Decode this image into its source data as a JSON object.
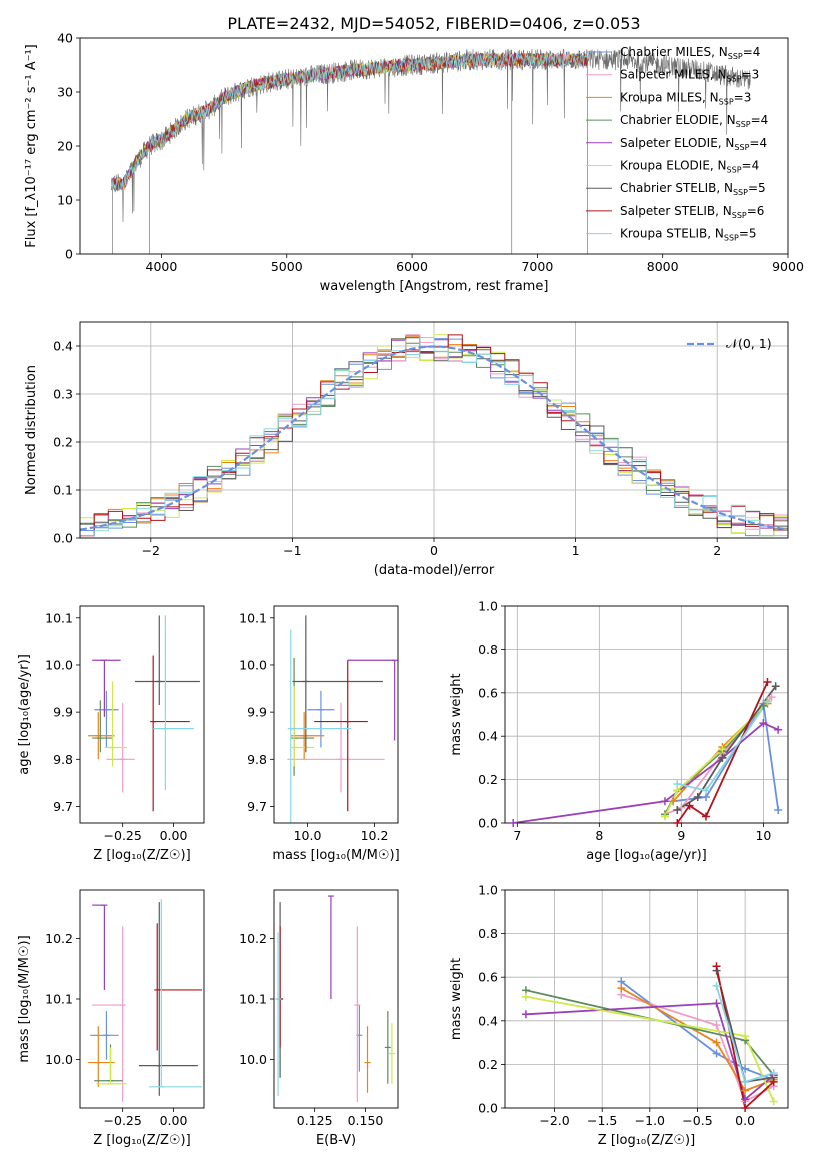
{
  "title": "PLATE=2432, MJD=54052, FIBERID=0406, z=0.053",
  "colors": {
    "Chabrier MILES": "#6a90e0",
    "Salpeter MILES": "#f29ac8",
    "Kroupa MILES": "#e8841a",
    "Chabrier ELODIE": "#5e8c5e",
    "Salpeter ELODIE": "#9b3fb8",
    "Kroupa ELODIE": "#cde94a",
    "Chabrier STELIB": "#5a5a5a",
    "Salpeter STELIB": "#b0141c",
    "Kroupa STELIB": "#85d8e3"
  },
  "chart_data": [
    {
      "id": "spectrum",
      "type": "line",
      "xlabel": "wavelength [Angstrom, rest frame]",
      "ylabel": "Flux [f_λ10⁻¹⁷ erg cm⁻² s⁻¹ A⁻¹]",
      "xlim": [
        3350,
        9000
      ],
      "ylim": [
        0,
        40
      ],
      "xticks": [
        4000,
        5000,
        6000,
        7000,
        8000,
        9000
      ],
      "yticks": [
        0,
        10,
        20,
        30,
        40
      ],
      "legend_position": "top-right",
      "legend": [
        {
          "name": "Chabrier MILES",
          "n_ssp": 4
        },
        {
          "name": "Salpeter MILES",
          "n_ssp": 3
        },
        {
          "name": "Kroupa MILES",
          "n_ssp": 3
        },
        {
          "name": "Chabrier ELODIE",
          "n_ssp": 4
        },
        {
          "name": "Salpeter ELODIE",
          "n_ssp": 4
        },
        {
          "name": "Kroupa ELODIE",
          "n_ssp": 4
        },
        {
          "name": "Chabrier STELIB",
          "n_ssp": 5
        },
        {
          "name": "Salpeter STELIB",
          "n_ssp": 6
        },
        {
          "name": "Kroupa STELIB",
          "n_ssp": 5
        }
      ],
      "continuum": [
        [
          3600,
          13
        ],
        [
          3700,
          13
        ],
        [
          3800,
          17
        ],
        [
          3900,
          20
        ],
        [
          4000,
          21
        ],
        [
          4100,
          23
        ],
        [
          4200,
          25
        ],
        [
          4300,
          26
        ],
        [
          4400,
          27
        ],
        [
          4500,
          29
        ],
        [
          4700,
          31
        ],
        [
          4900,
          32
        ],
        [
          5200,
          33
        ],
        [
          5500,
          34
        ],
        [
          6000,
          35
        ],
        [
          6500,
          36
        ],
        [
          6800,
          36
        ],
        [
          7000,
          36
        ],
        [
          7400,
          36
        ],
        [
          7700,
          36
        ],
        [
          8000,
          35
        ],
        [
          8300,
          34
        ],
        [
          8500,
          33
        ],
        [
          8700,
          32
        ]
      ],
      "spectrum_range": [
        3600,
        8700
      ],
      "models_range": [
        3600,
        7400
      ]
    },
    {
      "id": "residuals",
      "type": "line",
      "xlabel": "(data-model)/error",
      "ylabel": "Normed distribution",
      "xlim": [
        -2.5,
        2.5
      ],
      "ylim": [
        0,
        0.45
      ],
      "xticks": [
        -2,
        -1,
        0,
        1,
        2
      ],
      "yticks": [
        0.0,
        0.1,
        0.2,
        0.3,
        0.4
      ],
      "grid": true,
      "legend_position": "top-right",
      "reference_curve": "𝒩(0, 1)",
      "bin_width": 0.1
    },
    {
      "id": "z-age",
      "type": "scatter",
      "xlabel": "Z [log₁₀(Z/Z☉)]",
      "ylabel": "age  [log₁₀(age/yr)]",
      "xlim": [
        -0.46,
        0.15
      ],
      "ylim": [
        9.665,
        10.125
      ],
      "xticks": [
        -0.25,
        0.0
      ],
      "yticks": [
        9.7,
        9.8,
        9.9,
        10.0,
        10.1
      ],
      "points": [
        {
          "series": "Chabrier MILES",
          "x": -0.33,
          "xe": [
            0.06,
            0.06
          ],
          "y": 9.905,
          "ye": [
            0.08,
            0.04
          ]
        },
        {
          "series": "Salpeter MILES",
          "x": -0.25,
          "xe": [
            0.08,
            0.06
          ],
          "y": 9.8,
          "ye": [
            0.07,
            0.12
          ]
        },
        {
          "series": "Kroupa MILES",
          "x": -0.37,
          "xe": [
            0.05,
            0.08
          ],
          "y": 9.85,
          "ye": [
            0.05,
            0.05
          ]
        },
        {
          "series": "Chabrier ELODIE",
          "x": -0.36,
          "xe": [
            0.04,
            0.06
          ],
          "y": 9.845,
          "ye": [
            0.03,
            0.08
          ]
        },
        {
          "series": "Salpeter ELODIE",
          "x": -0.34,
          "xe": [
            0.06,
            0.08
          ],
          "y": 10.01,
          "ye": [
            0.12,
            0.0
          ]
        },
        {
          "series": "Kroupa ELODIE",
          "x": -0.3,
          "xe": [
            0.04,
            0.07
          ],
          "y": 9.825,
          "ye": [
            0.04,
            0.14
          ]
        },
        {
          "series": "Chabrier STELIB",
          "x": -0.07,
          "xe": [
            0.12,
            0.2
          ],
          "y": 9.965,
          "ye": [
            0.05,
            0.14
          ]
        },
        {
          "series": "Salpeter STELIB",
          "x": -0.1,
          "xe": [
            0.0,
            0.18
          ],
          "y": 9.88,
          "ye": [
            0.19,
            0.14
          ]
        },
        {
          "series": "Kroupa STELIB",
          "x": -0.04,
          "xe": [
            0.06,
            0.14
          ],
          "y": 9.865,
          "ye": [
            0.13,
            0.24
          ]
        }
      ]
    },
    {
      "id": "mass-age",
      "type": "scatter",
      "xlabel": "mass [log₁₀(M/M☉)]",
      "ylabel": "",
      "xlim": [
        9.9,
        10.27
      ],
      "ylim": [
        9.665,
        10.125
      ],
      "xticks": [
        10.0,
        10.2
      ],
      "yticks": [
        9.7,
        9.8,
        9.9,
        10.0,
        10.1
      ],
      "points": [
        {
          "series": "Chabrier MILES",
          "x": 10.04,
          "xe": [
            0.04,
            0.04
          ],
          "y": 9.905,
          "ye": [
            0.08,
            0.04
          ]
        },
        {
          "series": "Salpeter MILES",
          "x": 10.1,
          "xe": [
            0.16,
            0.13
          ],
          "y": 9.8,
          "ye": [
            0.07,
            0.12
          ]
        },
        {
          "series": "Kroupa MILES",
          "x": 9.99,
          "xe": [
            0.04,
            0.06
          ],
          "y": 9.85,
          "ye": [
            0.05,
            0.05
          ]
        },
        {
          "series": "Chabrier ELODIE",
          "x": 9.96,
          "xe": [
            0.0,
            0.06
          ],
          "y": 9.845,
          "ye": [
            0.08,
            0.17
          ]
        },
        {
          "series": "Salpeter ELODIE",
          "x": 10.26,
          "xe": [
            0.14,
            0.0
          ],
          "y": 10.01,
          "ye": [
            0.17,
            0.0
          ]
        },
        {
          "series": "Kroupa ELODIE",
          "x": 9.96,
          "xe": [
            0.0,
            0.06
          ],
          "y": 9.825,
          "ye": [
            0.04,
            0.13
          ]
        },
        {
          "series": "Chabrier STELIB",
          "x": 9.995,
          "xe": [
            0.04,
            0.23
          ],
          "y": 9.965,
          "ye": [
            0.15,
            0.14
          ]
        },
        {
          "series": "Salpeter STELIB",
          "x": 10.12,
          "xe": [
            0.1,
            0.06
          ],
          "y": 9.88,
          "ye": [
            0.19,
            0.13
          ]
        },
        {
          "series": "Kroupa STELIB",
          "x": 9.95,
          "xe": [
            0.0,
            0.18
          ],
          "y": 9.865,
          "ye": [
            0.2,
            0.21
          ]
        }
      ]
    },
    {
      "id": "age-mass-weight",
      "type": "line",
      "xlabel": "age  [log₁₀(age/yr)]",
      "ylabel": "mass weight",
      "xlim": [
        6.85,
        10.3
      ],
      "ylim": [
        0,
        1
      ],
      "xticks": [
        7,
        8,
        9,
        10
      ],
      "yticks": [
        0.0,
        0.2,
        0.4,
        0.6,
        0.8,
        1.0
      ],
      "grid": true,
      "series": [
        {
          "name": "Chabrier MILES",
          "points": [
            [
              8.9,
              0.1
            ],
            [
              9.3,
              0.12
            ],
            [
              10.0,
              0.55
            ],
            [
              10.18,
              0.06
            ]
          ]
        },
        {
          "name": "Salpeter MILES",
          "points": [
            [
              8.8,
              0.04
            ],
            [
              9.0,
              0.07
            ],
            [
              9.5,
              0.32
            ],
            [
              10.1,
              0.58
            ]
          ]
        },
        {
          "name": "Kroupa MILES",
          "points": [
            [
              8.9,
              0.1
            ],
            [
              9.5,
              0.35
            ],
            [
              10.05,
              0.55
            ]
          ]
        },
        {
          "name": "Chabrier ELODIE",
          "points": [
            [
              8.8,
              0.04
            ],
            [
              8.95,
              0.15
            ],
            [
              9.5,
              0.33
            ],
            [
              10.0,
              0.54
            ]
          ]
        },
        {
          "name": "Salpeter ELODIE",
          "points": [
            [
              6.95,
              0.0
            ],
            [
              8.8,
              0.1
            ],
            [
              9.5,
              0.3
            ],
            [
              10.0,
              0.46
            ],
            [
              10.18,
              0.43
            ]
          ]
        },
        {
          "name": "Kroupa ELODIE",
          "points": [
            [
              8.8,
              0.03
            ],
            [
              8.95,
              0.15
            ],
            [
              9.5,
              0.34
            ],
            [
              10.05,
              0.56
            ]
          ]
        },
        {
          "name": "Chabrier STELIB",
          "points": [
            [
              8.95,
              0.06
            ],
            [
              9.2,
              0.12
            ],
            [
              9.5,
              0.3
            ],
            [
              10.15,
              0.63
            ]
          ]
        },
        {
          "name": "Salpeter STELIB",
          "points": [
            [
              8.95,
              0.0
            ],
            [
              9.1,
              0.08
            ],
            [
              9.3,
              0.03
            ],
            [
              10.05,
              0.65
            ]
          ]
        },
        {
          "name": "Kroupa STELIB",
          "points": [
            [
              8.95,
              0.18
            ],
            [
              9.3,
              0.15
            ],
            [
              10.05,
              0.56
            ]
          ]
        }
      ]
    },
    {
      "id": "z-mass",
      "type": "scatter",
      "xlabel": "Z [log₁₀(Z/Z☉)]",
      "ylabel": "mass [log₁₀(M/M☉)]",
      "xlim": [
        -0.46,
        0.15
      ],
      "ylim": [
        9.92,
        10.28
      ],
      "xticks": [
        -0.25,
        0.0
      ],
      "yticks": [
        10.0,
        10.1,
        10.2
      ],
      "points": [
        {
          "series": "Chabrier MILES",
          "x": -0.33,
          "xe": [
            0.08,
            0.06
          ],
          "y": 10.04,
          "ye": [
            0.04,
            0.04
          ]
        },
        {
          "series": "Salpeter MILES",
          "x": -0.25,
          "xe": [
            0.15,
            0.0
          ],
          "y": 10.09,
          "ye": [
            0.16,
            0.13
          ]
        },
        {
          "series": "Kroupa MILES",
          "x": -0.37,
          "xe": [
            0.05,
            0.08
          ],
          "y": 9.995,
          "ye": [
            0.04,
            0.06
          ]
        },
        {
          "series": "Chabrier ELODIE",
          "x": -0.31,
          "xe": [
            0.08,
            0.06
          ],
          "y": 9.965,
          "ye": [
            0.0,
            0.06
          ]
        },
        {
          "series": "Salpeter ELODIE",
          "x": -0.34,
          "xe": [
            0.06,
            0.0
          ],
          "y": 10.255,
          "ye": [
            0.14,
            0.0
          ]
        },
        {
          "series": "Kroupa ELODIE",
          "x": -0.31,
          "xe": [
            0.07,
            0.08
          ],
          "y": 9.96,
          "ye": [
            0.0,
            0.06
          ]
        },
        {
          "series": "Chabrier STELIB",
          "x": -0.07,
          "xe": [
            0.1,
            0.19
          ],
          "y": 9.99,
          "ye": [
            0.05,
            0.27
          ]
        },
        {
          "series": "Salpeter STELIB",
          "x": -0.08,
          "xe": [
            0.0,
            0.22
          ],
          "y": 10.115,
          "ye": [
            0.1,
            0.11
          ]
        },
        {
          "series": "Kroupa STELIB",
          "x": -0.06,
          "xe": [
            0.06,
            0.2
          ],
          "y": 9.955,
          "ye": [
            0.0,
            0.31
          ]
        }
      ]
    },
    {
      "id": "ebv-mass",
      "type": "scatter",
      "xlabel": "E(B-V)",
      "ylabel": "",
      "xlim": [
        0.105,
        0.166
      ],
      "ylim": [
        9.92,
        10.28
      ],
      "xticks": [
        0.125,
        0.15
      ],
      "yticks": [
        10.0,
        10.1,
        10.2
      ],
      "points": [
        {
          "series": "Chabrier MILES",
          "x": 0.147,
          "y": 10.04,
          "ye": [
            0.06,
            0.05
          ]
        },
        {
          "series": "Salpeter MILES",
          "x": 0.146,
          "y": 10.09,
          "ye": [
            0.16,
            0.13
          ]
        },
        {
          "series": "Kroupa MILES",
          "x": 0.151,
          "y": 9.995,
          "ye": [
            0.05,
            0.06
          ]
        },
        {
          "series": "Chabrier ELODIE",
          "x": 0.161,
          "y": 10.02,
          "ye": [
            0.06,
            0.06
          ]
        },
        {
          "series": "Salpeter ELODIE",
          "x": 0.133,
          "y": 10.27,
          "ye": [
            0.17,
            0.0
          ]
        },
        {
          "series": "Kroupa ELODIE",
          "x": 0.163,
          "y": 10.01,
          "ye": [
            0.05,
            0.05
          ]
        },
        {
          "series": "Chabrier STELIB",
          "x": 0.108,
          "y": 10.1,
          "ye": [
            0.13,
            0.16
          ]
        },
        {
          "series": "Salpeter STELIB",
          "x": 0.108,
          "y": 10.1,
          "ye": [
            0.08,
            0.12
          ]
        },
        {
          "series": "Kroupa STELIB",
          "x": 0.107,
          "y": 10.1,
          "ye": [
            0.16,
            0.11
          ]
        }
      ]
    },
    {
      "id": "z-mass-weight",
      "type": "line",
      "xlabel": "Z [log₁₀(Z/Z☉)]",
      "ylabel": "mass weight",
      "xlim": [
        -2.52,
        0.45
      ],
      "ylim": [
        0,
        1
      ],
      "xticks": [
        -2.0,
        -1.5,
        -1.0,
        -0.5,
        0.0
      ],
      "yticks": [
        0.0,
        0.2,
        0.4,
        0.6,
        0.8,
        1.0
      ],
      "grid": true,
      "series": [
        {
          "name": "Chabrier MILES",
          "points": [
            [
              -1.3,
              0.58
            ],
            [
              -0.3,
              0.25
            ],
            [
              0.0,
              0.18
            ],
            [
              0.3,
              0.13
            ]
          ]
        },
        {
          "name": "Salpeter MILES",
          "points": [
            [
              -1.3,
              0.52
            ],
            [
              -0.3,
              0.38
            ],
            [
              0.0,
              0.03
            ],
            [
              0.3,
              0.1
            ]
          ]
        },
        {
          "name": "Kroupa MILES",
          "points": [
            [
              -1.3,
              0.55
            ],
            [
              -0.3,
              0.3
            ],
            [
              0.0,
              0.08
            ],
            [
              0.3,
              0.13
            ]
          ]
        },
        {
          "name": "Chabrier ELODIE",
          "points": [
            [
              -2.3,
              0.54
            ],
            [
              0.0,
              0.31
            ],
            [
              0.3,
              0.15
            ]
          ]
        },
        {
          "name": "Salpeter ELODIE",
          "points": [
            [
              -2.3,
              0.43
            ],
            [
              -0.3,
              0.48
            ],
            [
              0.0,
              0.04
            ],
            [
              0.3,
              0.15
            ]
          ]
        },
        {
          "name": "Kroupa ELODIE",
          "points": [
            [
              -2.3,
              0.51
            ],
            [
              0.0,
              0.33
            ],
            [
              0.3,
              0.03
            ]
          ]
        },
        {
          "name": "Chabrier STELIB",
          "points": [
            [
              -0.3,
              0.63
            ],
            [
              0.0,
              0.12
            ],
            [
              0.3,
              0.14
            ]
          ]
        },
        {
          "name": "Salpeter STELIB",
          "points": [
            [
              -0.3,
              0.65
            ],
            [
              0.0,
              0.0
            ],
            [
              0.3,
              0.12
            ]
          ]
        },
        {
          "name": "Kroupa STELIB",
          "points": [
            [
              -0.3,
              0.56
            ],
            [
              0.0,
              0.12
            ],
            [
              0.3,
              0.16
            ]
          ]
        }
      ]
    }
  ]
}
